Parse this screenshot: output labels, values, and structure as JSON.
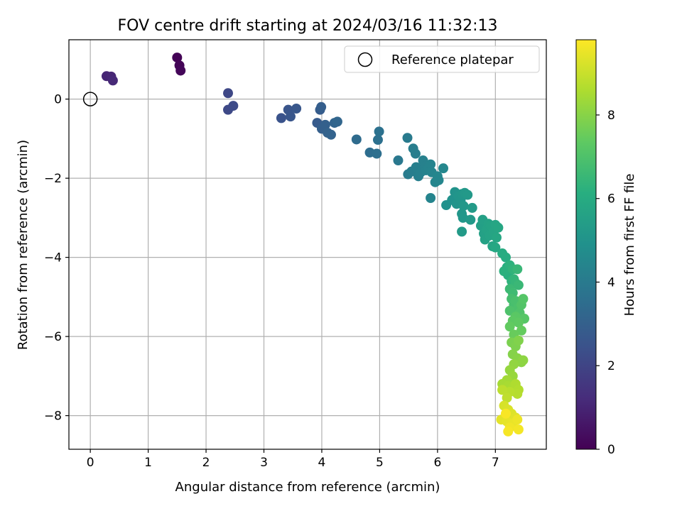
{
  "chart_data": {
    "type": "scatter",
    "title": "FOV centre drift starting at 2024/03/16 11:32:13",
    "xlabel": "Angular distance from reference (arcmin)",
    "ylabel": "Rotation from reference (arcmin)",
    "xlim": [
      -0.37,
      7.88
    ],
    "ylim": [
      -8.85,
      1.5
    ],
    "xticks": [
      0,
      1,
      2,
      3,
      4,
      5,
      6,
      7
    ],
    "yticks": [
      0,
      -2,
      -4,
      -6,
      -8
    ],
    "xtick_labels": [
      "0",
      "1",
      "2",
      "3",
      "4",
      "5",
      "6",
      "7"
    ],
    "ytick_labels": [
      "0",
      "−2",
      "−4",
      "−6",
      "−8"
    ],
    "grid": true,
    "legend": {
      "position": "top-right",
      "entries": [
        "Reference platepar"
      ]
    },
    "reference_point": {
      "x": 0,
      "y": 0,
      "label": "Reference platepar"
    },
    "colorbar": {
      "label": "Hours from first FF file",
      "range": [
        0,
        9.8
      ],
      "ticks": [
        0,
        2,
        4,
        6,
        8
      ],
      "tick_labels": [
        "0",
        "2",
        "4",
        "6",
        "8"
      ],
      "colormap": "viridis"
    },
    "points": [
      {
        "x": 1.5,
        "y": 1.05,
        "h": 0.05
      },
      {
        "x": 1.54,
        "y": 0.85,
        "h": 0.1
      },
      {
        "x": 1.56,
        "y": 0.72,
        "h": 0.15
      },
      {
        "x": 0.28,
        "y": 0.58,
        "h": 1.0
      },
      {
        "x": 0.36,
        "y": 0.57,
        "h": 1.05
      },
      {
        "x": 0.39,
        "y": 0.47,
        "h": 1.1
      },
      {
        "x": 2.38,
        "y": 0.15,
        "h": 2.1
      },
      {
        "x": 2.38,
        "y": -0.27,
        "h": 2.15
      },
      {
        "x": 2.47,
        "y": -0.17,
        "h": 2.2
      },
      {
        "x": 3.3,
        "y": -0.48,
        "h": 2.5
      },
      {
        "x": 3.42,
        "y": -0.27,
        "h": 2.55
      },
      {
        "x": 3.46,
        "y": -0.44,
        "h": 2.6
      },
      {
        "x": 3.56,
        "y": -0.24,
        "h": 2.65
      },
      {
        "x": 3.92,
        "y": -0.6,
        "h": 2.8
      },
      {
        "x": 3.97,
        "y": -0.27,
        "h": 2.85
      },
      {
        "x": 3.99,
        "y": -0.2,
        "h": 2.9
      },
      {
        "x": 4.0,
        "y": -0.75,
        "h": 2.95
      },
      {
        "x": 4.06,
        "y": -0.65,
        "h": 3.0
      },
      {
        "x": 4.1,
        "y": -0.85,
        "h": 3.05
      },
      {
        "x": 4.16,
        "y": -0.9,
        "h": 3.1
      },
      {
        "x": 4.22,
        "y": -0.6,
        "h": 3.15
      },
      {
        "x": 4.27,
        "y": -0.57,
        "h": 3.2
      },
      {
        "x": 4.6,
        "y": -1.02,
        "h": 3.4
      },
      {
        "x": 4.83,
        "y": -1.35,
        "h": 3.5
      },
      {
        "x": 4.95,
        "y": -1.38,
        "h": 3.55
      },
      {
        "x": 4.97,
        "y": -1.03,
        "h": 3.6
      },
      {
        "x": 4.99,
        "y": -0.82,
        "h": 3.65
      },
      {
        "x": 5.32,
        "y": -1.55,
        "h": 3.9
      },
      {
        "x": 5.48,
        "y": -0.98,
        "h": 4.0
      },
      {
        "x": 5.49,
        "y": -1.9,
        "h": 4.05
      },
      {
        "x": 5.55,
        "y": -1.83,
        "h": 4.1
      },
      {
        "x": 5.58,
        "y": -1.25,
        "h": 4.12
      },
      {
        "x": 5.62,
        "y": -1.38,
        "h": 4.15
      },
      {
        "x": 5.63,
        "y": -1.72,
        "h": 4.18
      },
      {
        "x": 5.67,
        "y": -1.95,
        "h": 4.2
      },
      {
        "x": 5.71,
        "y": -1.85,
        "h": 4.22
      },
      {
        "x": 5.75,
        "y": -1.55,
        "h": 4.25
      },
      {
        "x": 5.78,
        "y": -1.7,
        "h": 4.28
      },
      {
        "x": 5.8,
        "y": -1.8,
        "h": 4.3
      },
      {
        "x": 5.85,
        "y": -1.75,
        "h": 4.33
      },
      {
        "x": 5.88,
        "y": -1.65,
        "h": 4.35
      },
      {
        "x": 5.9,
        "y": -1.85,
        "h": 4.38
      },
      {
        "x": 5.88,
        "y": -2.5,
        "h": 4.4
      },
      {
        "x": 5.96,
        "y": -2.1,
        "h": 4.42
      },
      {
        "x": 6.0,
        "y": -1.95,
        "h": 4.45
      },
      {
        "x": 6.02,
        "y": -2.05,
        "h": 4.48
      },
      {
        "x": 6.1,
        "y": -1.75,
        "h": 4.5
      },
      {
        "x": 6.15,
        "y": -2.68,
        "h": 4.9
      },
      {
        "x": 6.25,
        "y": -2.55,
        "h": 4.95
      },
      {
        "x": 6.3,
        "y": -2.35,
        "h": 5.0
      },
      {
        "x": 6.33,
        "y": -2.65,
        "h": 5.02
      },
      {
        "x": 6.36,
        "y": -2.45,
        "h": 5.05
      },
      {
        "x": 6.4,
        "y": -2.55,
        "h": 5.07
      },
      {
        "x": 6.42,
        "y": -2.4,
        "h": 5.1
      },
      {
        "x": 6.42,
        "y": -2.9,
        "h": 5.12
      },
      {
        "x": 6.44,
        "y": -3.0,
        "h": 5.15
      },
      {
        "x": 6.45,
        "y": -2.7,
        "h": 5.17
      },
      {
        "x": 6.47,
        "y": -2.37,
        "h": 5.2
      },
      {
        "x": 6.52,
        "y": -2.42,
        "h": 5.22
      },
      {
        "x": 6.57,
        "y": -3.05,
        "h": 5.25
      },
      {
        "x": 6.6,
        "y": -2.75,
        "h": 5.27
      },
      {
        "x": 6.42,
        "y": -3.35,
        "h": 5.3
      },
      {
        "x": 6.75,
        "y": -3.2,
        "h": 5.5
      },
      {
        "x": 6.78,
        "y": -3.05,
        "h": 5.52
      },
      {
        "x": 6.8,
        "y": -3.4,
        "h": 5.55
      },
      {
        "x": 6.82,
        "y": -3.55,
        "h": 5.57
      },
      {
        "x": 6.85,
        "y": -3.3,
        "h": 5.6
      },
      {
        "x": 6.88,
        "y": -3.15,
        "h": 5.62
      },
      {
        "x": 6.9,
        "y": -3.45,
        "h": 5.65
      },
      {
        "x": 6.92,
        "y": -3.2,
        "h": 5.67
      },
      {
        "x": 6.95,
        "y": -3.72,
        "h": 5.7
      },
      {
        "x": 6.97,
        "y": -3.35,
        "h": 5.72
      },
      {
        "x": 7.0,
        "y": -3.18,
        "h": 5.75
      },
      {
        "x": 7.02,
        "y": -3.5,
        "h": 5.77
      },
      {
        "x": 7.05,
        "y": -3.25,
        "h": 5.8
      },
      {
        "x": 7.0,
        "y": -3.75,
        "h": 5.82
      },
      {
        "x": 7.12,
        "y": -3.9,
        "h": 6.0
      },
      {
        "x": 7.18,
        "y": -4.0,
        "h": 6.05
      },
      {
        "x": 7.2,
        "y": -4.25,
        "h": 6.1
      },
      {
        "x": 7.22,
        "y": -4.45,
        "h": 6.15
      },
      {
        "x": 7.15,
        "y": -4.35,
        "h": 6.2
      },
      {
        "x": 7.25,
        "y": -4.2,
        "h": 6.25
      },
      {
        "x": 7.28,
        "y": -4.6,
        "h": 6.3
      },
      {
        "x": 7.3,
        "y": -4.3,
        "h": 6.35
      },
      {
        "x": 7.32,
        "y": -4.55,
        "h": 6.4
      },
      {
        "x": 7.35,
        "y": -4.65,
        "h": 6.45
      },
      {
        "x": 7.38,
        "y": -4.3,
        "h": 6.5
      },
      {
        "x": 7.4,
        "y": -4.7,
        "h": 6.55
      },
      {
        "x": 7.25,
        "y": -4.8,
        "h": 6.6
      },
      {
        "x": 7.3,
        "y": -4.9,
        "h": 6.65
      },
      {
        "x": 7.28,
        "y": -5.05,
        "h": 6.8
      },
      {
        "x": 7.32,
        "y": -5.2,
        "h": 6.85
      },
      {
        "x": 7.35,
        "y": -5.1,
        "h": 6.9
      },
      {
        "x": 7.38,
        "y": -5.3,
        "h": 6.95
      },
      {
        "x": 7.25,
        "y": -5.35,
        "h": 7.0
      },
      {
        "x": 7.42,
        "y": -5.4,
        "h": 7.05
      },
      {
        "x": 7.45,
        "y": -5.2,
        "h": 7.1
      },
      {
        "x": 7.48,
        "y": -5.05,
        "h": 7.15
      },
      {
        "x": 7.5,
        "y": -5.55,
        "h": 7.2
      },
      {
        "x": 7.35,
        "y": -5.5,
        "h": 7.25
      },
      {
        "x": 7.3,
        "y": -5.6,
        "h": 7.3
      },
      {
        "x": 7.4,
        "y": -5.65,
        "h": 7.35
      },
      {
        "x": 7.25,
        "y": -5.75,
        "h": 7.4
      },
      {
        "x": 7.45,
        "y": -5.85,
        "h": 7.45
      },
      {
        "x": 7.32,
        "y": -5.95,
        "h": 7.5
      },
      {
        "x": 7.28,
        "y": -6.15,
        "h": 7.8
      },
      {
        "x": 7.35,
        "y": -6.25,
        "h": 7.85
      },
      {
        "x": 7.4,
        "y": -6.1,
        "h": 7.9
      },
      {
        "x": 7.3,
        "y": -6.45,
        "h": 7.95
      },
      {
        "x": 7.38,
        "y": -6.55,
        "h": 8.0
      },
      {
        "x": 7.45,
        "y": -6.65,
        "h": 8.05
      },
      {
        "x": 7.48,
        "y": -6.6,
        "h": 8.1
      },
      {
        "x": 7.32,
        "y": -6.7,
        "h": 8.15
      },
      {
        "x": 7.25,
        "y": -6.85,
        "h": 8.2
      },
      {
        "x": 7.3,
        "y": -7.0,
        "h": 8.25
      },
      {
        "x": 7.2,
        "y": -7.1,
        "h": 8.4
      },
      {
        "x": 7.12,
        "y": -7.2,
        "h": 8.45
      },
      {
        "x": 7.22,
        "y": -7.25,
        "h": 8.5
      },
      {
        "x": 7.3,
        "y": -7.3,
        "h": 8.55
      },
      {
        "x": 7.35,
        "y": -7.2,
        "h": 8.6
      },
      {
        "x": 7.4,
        "y": -7.35,
        "h": 8.65
      },
      {
        "x": 7.38,
        "y": -7.45,
        "h": 8.7
      },
      {
        "x": 7.25,
        "y": -7.4,
        "h": 8.75
      },
      {
        "x": 7.12,
        "y": -7.35,
        "h": 8.8
      },
      {
        "x": 7.2,
        "y": -7.55,
        "h": 8.85
      },
      {
        "x": 7.15,
        "y": -7.75,
        "h": 9.2
      },
      {
        "x": 7.22,
        "y": -7.85,
        "h": 9.25
      },
      {
        "x": 7.28,
        "y": -7.95,
        "h": 9.3
      },
      {
        "x": 7.35,
        "y": -8.05,
        "h": 9.35
      },
      {
        "x": 7.1,
        "y": -8.1,
        "h": 9.4
      },
      {
        "x": 7.2,
        "y": -8.15,
        "h": 9.45
      },
      {
        "x": 7.3,
        "y": -8.2,
        "h": 9.5
      },
      {
        "x": 7.38,
        "y": -8.1,
        "h": 9.55
      },
      {
        "x": 7.25,
        "y": -8.3,
        "h": 9.6
      },
      {
        "x": 7.4,
        "y": -8.35,
        "h": 9.65
      },
      {
        "x": 7.22,
        "y": -8.4,
        "h": 9.7
      },
      {
        "x": 7.18,
        "y": -7.95,
        "h": 9.72
      }
    ]
  }
}
